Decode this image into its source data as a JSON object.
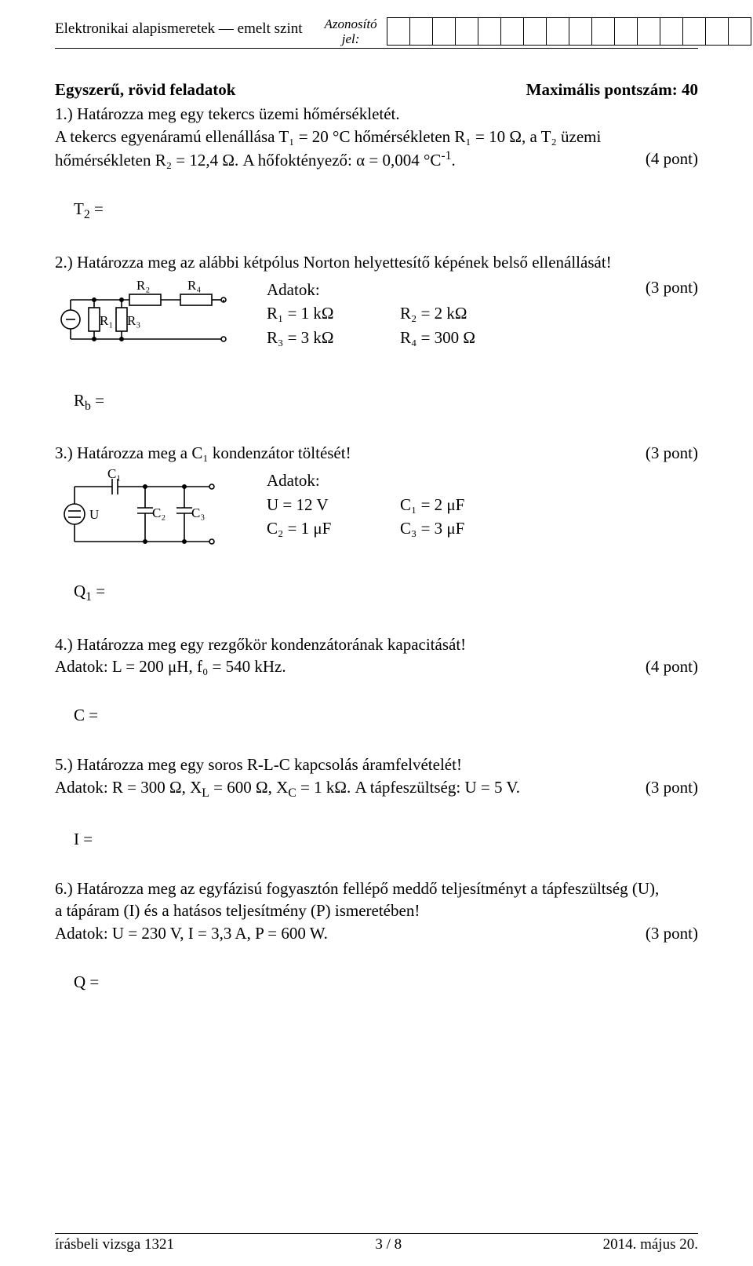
{
  "header": {
    "left": "Elektronikai alapismeretek — emelt szint",
    "mid_line1": "Azonosító",
    "mid_line2": "jel:",
    "box_count": 16
  },
  "section": {
    "title_left": "Egyszerű, rövid feladatok",
    "title_right": "Maximális pontszám: 40"
  },
  "task1": {
    "line1": "1.)  Határozza meg egy tekercs üzemi hőmérsékletét.",
    "line2": "A tekercs egyenáramú ellenállása T₁ = 20 °C hőmérsékleten R₁ = 10 Ω, a T₂ üzemi",
    "line3_a": "hőmérsékleten R₂ = 12,4 Ω. A hőfoktényező: α = 0,004 °C",
    "line3_b": ".",
    "line3_sup": "-1",
    "pts": "(4 pont)",
    "answer_label": "T",
    "answer_sub": "2",
    "answer_eq": " ="
  },
  "task2": {
    "line1": "2.)  Határozza meg az alábbi kétpólus Norton helyettesítő képének belső ellenállását!",
    "pts": "(3 pont)",
    "circuit_labels": {
      "R1": "R₁",
      "R2": "R₂",
      "R3": "R₃",
      "R4": "R₄"
    },
    "adatok_title": "Adatok:",
    "d": {
      "r1": "R₁ = 1 kΩ",
      "r2": "R₂ = 2 kΩ",
      "r3": "R₃ = 3 kΩ",
      "r4": "R₄ = 300 Ω"
    },
    "answer_label": "R",
    "answer_sub": "b",
    "answer_eq": " ="
  },
  "task3": {
    "line1": "3.)  Határozza meg a C₁ kondenzátor töltését!",
    "pts": "(3 pont)",
    "circuit_labels": {
      "U": "U",
      "C1": "C₁",
      "C2": "C₂",
      "C3": "C₃"
    },
    "adatok_title": "Adatok:",
    "d": {
      "u": "U = 12 V",
      "c1": "C₁ = 2 μF",
      "c2": "C₂ = 1 μF",
      "c3": "C₃ = 3 μF"
    },
    "answer_label": "Q",
    "answer_sub": "1",
    "answer_eq": " ="
  },
  "task4": {
    "line1": "4.)  Határozza meg egy rezgőkör kondenzátorának kapacitását!",
    "line2": "Adatok: L = 200 μH, f₀ = 540 kHz.",
    "pts": "(4 pont)",
    "answer": "C ="
  },
  "task5": {
    "line1": "5.)  Határozza meg egy soros R-L-C kapcsolás áramfelvételét!",
    "line2_a": "Adatok: R = 300 Ω, X",
    "line2_b": " = 600 Ω, X",
    "line2_c": " = 1 kΩ. A tápfeszültség: U = 5 V.",
    "sub_L": "L",
    "sub_C": "C",
    "pts": "(3 pont)",
    "answer": "I ="
  },
  "task6": {
    "line1": "6.)  Határozza meg az egyfázisú fogyasztón fellépő meddő teljesítményt a tápfeszültség (U),",
    "line2": "a tápáram (I) és a hatásos teljesítmény (P) ismeretében!",
    "line3": "Adatok: U = 230 V,  I = 3,3 A, P = 600 W.",
    "pts": "(3 pont)",
    "answer": "Q ="
  },
  "footer": {
    "left": "írásbeli vizsga 1321",
    "mid": "3 / 8",
    "right": "2014. május 20."
  },
  "style": {
    "stroke": "#000000",
    "stroke_width": 1.6,
    "font": "Times New Roman"
  }
}
